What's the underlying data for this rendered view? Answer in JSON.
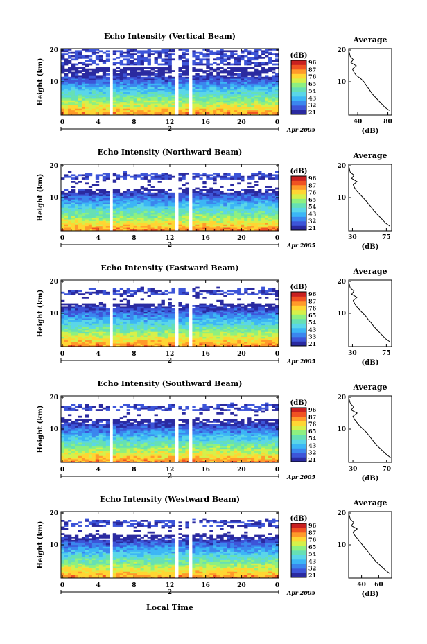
{
  "figure": {
    "xlabel": "Local Time",
    "date_label": "Apr 2005",
    "day_marker": "2"
  },
  "colorbar": {
    "unit_label": "(dB)",
    "colors": [
      "#2a2aa0",
      "#3d55d8",
      "#3b86ee",
      "#3cb6f5",
      "#5ad6e8",
      "#66e0b4",
      "#8ef080",
      "#d6f04a",
      "#ffd633",
      "#ff9a2a",
      "#f05222",
      "#c82020"
    ]
  },
  "chart_data": [
    {
      "type": "heatmap",
      "title": "Echo Intensity (Vertical Beam)",
      "xlabel": "Local Time",
      "ylabel": "Height (km)",
      "xlim": [
        0,
        24
      ],
      "ylim": [
        0,
        20
      ],
      "x_ticks": [
        "0",
        "4",
        "8",
        "12",
        "16",
        "20",
        "0"
      ],
      "y_ticks": [
        "10",
        "20"
      ],
      "colorbar_ticks": [
        "96",
        "87",
        "76",
        "65",
        "54",
        "43",
        "32",
        "21"
      ],
      "gaps_hours": [
        [
          5.5,
          5.7
        ],
        [
          12.6,
          12.9
        ],
        [
          14.1,
          14.4
        ]
      ],
      "white_band_km": [
        14.3,
        15.0
      ],
      "cloud_top_km": 19.5,
      "profile": {
        "title": "Average",
        "xlabel": "(dB)",
        "x_ticks": [
          "40",
          "80"
        ],
        "xlim": [
          28,
          85
        ],
        "y_ticks": [
          "10",
          "20"
        ],
        "height_km": [
          1,
          2,
          3,
          4,
          5,
          6,
          7,
          8,
          9,
          10,
          11,
          12,
          13,
          14,
          15,
          16,
          17,
          18,
          19,
          20
        ],
        "values_db": [
          82,
          76,
          72,
          68,
          64,
          60,
          57,
          54,
          51,
          48,
          44,
          38,
          35,
          33,
          38,
          31,
          34,
          30,
          29,
          28
        ]
      }
    },
    {
      "type": "heatmap",
      "title": "Echo Intensity (Northward Beam)",
      "xlabel": "Local Time",
      "ylabel": "Height (km)",
      "xlim": [
        0,
        24
      ],
      "ylim": [
        0,
        20
      ],
      "x_ticks": [
        "0",
        "4",
        "8",
        "12",
        "16",
        "20",
        "0"
      ],
      "y_ticks": [
        "10",
        "20"
      ],
      "colorbar_ticks": [
        "96",
        "87",
        "76",
        "65",
        "54",
        "43",
        "32",
        "21"
      ],
      "gaps_hours": [
        [
          5.5,
          5.7
        ],
        [
          12.6,
          12.9
        ],
        [
          14.1,
          14.4
        ]
      ],
      "white_band_km": [
        12.5,
        15.6
      ],
      "cloud_top_km": 17.0,
      "profile": {
        "title": "Average",
        "xlabel": "(dB)",
        "x_ticks": [
          "30",
          "75"
        ],
        "xlim": [
          25,
          82
        ],
        "y_ticks": [
          "10",
          "20"
        ],
        "height_km": [
          1,
          2,
          3,
          4,
          5,
          6,
          7,
          8,
          9,
          10,
          11,
          12,
          13,
          14,
          15,
          16,
          17,
          18,
          19,
          20
        ],
        "values_db": [
          80,
          74,
          70,
          66,
          62,
          58,
          55,
          51,
          48,
          44,
          40,
          36,
          33,
          31,
          36,
          29,
          32,
          27,
          26,
          25
        ]
      }
    },
    {
      "type": "heatmap",
      "title": "Echo Intensity (Eastward Beam)",
      "xlabel": "Local Time",
      "ylabel": "Height (km)",
      "xlim": [
        0,
        24
      ],
      "ylim": [
        0,
        20
      ],
      "x_ticks": [
        "0",
        "4",
        "8",
        "12",
        "16",
        "20",
        "0"
      ],
      "y_ticks": [
        "10",
        "20"
      ],
      "colorbar_ticks": [
        "96",
        "87",
        "76",
        "65",
        "54",
        "43",
        "33",
        "21"
      ],
      "gaps_hours": [
        [
          5.5,
          5.7
        ],
        [
          12.6,
          12.9
        ],
        [
          14.1,
          14.4
        ]
      ],
      "white_band_km": [
        13.0,
        15.4
      ],
      "cloud_top_km": 17.0,
      "profile": {
        "title": "Average",
        "xlabel": "(dB)",
        "x_ticks": [
          "30",
          "75"
        ],
        "xlim": [
          25,
          82
        ],
        "y_ticks": [
          "10",
          "20"
        ],
        "height_km": [
          1,
          2,
          3,
          4,
          5,
          6,
          7,
          8,
          9,
          10,
          11,
          12,
          13,
          14,
          15,
          16,
          17,
          18,
          19,
          20
        ],
        "values_db": [
          80,
          74,
          70,
          66,
          62,
          58,
          55,
          51,
          48,
          44,
          40,
          36,
          33,
          31,
          36,
          29,
          32,
          27,
          26,
          25
        ]
      }
    },
    {
      "type": "heatmap",
      "title": "Echo Intensity (Southward Beam)",
      "xlabel": "Local Time",
      "ylabel": "Height (km)",
      "xlim": [
        0,
        24
      ],
      "ylim": [
        0,
        20
      ],
      "x_ticks": [
        "0",
        "4",
        "8",
        "12",
        "16",
        "20",
        "0"
      ],
      "y_ticks": [
        "10",
        "20"
      ],
      "colorbar_ticks": [
        "96",
        "87",
        "76",
        "65",
        "54",
        "43",
        "32",
        "21"
      ],
      "gaps_hours": [
        [
          5.5,
          5.7
        ],
        [
          12.6,
          12.9
        ],
        [
          14.1,
          14.4
        ]
      ],
      "white_band_km": [
        13.0,
        15.4
      ],
      "cloud_top_km": 17.0,
      "profile": {
        "title": "Average",
        "xlabel": "(dB)",
        "x_ticks": [
          "30",
          "70"
        ],
        "xlim": [
          25,
          76
        ],
        "y_ticks": [
          "10",
          "20"
        ],
        "height_km": [
          1,
          2,
          3,
          4,
          5,
          6,
          7,
          8,
          9,
          10,
          11,
          12,
          13,
          14,
          15,
          16,
          17,
          18,
          19,
          20
        ],
        "values_db": [
          75,
          70,
          66,
          62,
          58,
          55,
          52,
          49,
          46,
          42,
          38,
          35,
          32,
          30,
          35,
          28,
          31,
          27,
          26,
          25
        ]
      }
    },
    {
      "type": "heatmap",
      "title": "Echo Intensity (Westward Beam)",
      "xlabel": "Local Time",
      "ylabel": "Height (km)",
      "xlim": [
        0,
        24
      ],
      "ylim": [
        0,
        20
      ],
      "x_ticks": [
        "0",
        "4",
        "8",
        "12",
        "16",
        "20",
        "0"
      ],
      "y_ticks": [
        "10",
        "20"
      ],
      "colorbar_ticks": [
        "96",
        "87",
        "76",
        "65",
        "54",
        "43",
        "32",
        "21"
      ],
      "gaps_hours": [
        [
          5.5,
          5.7
        ],
        [
          12.6,
          12.9
        ],
        [
          14.1,
          14.4
        ]
      ],
      "white_band_km": [
        13.0,
        15.4
      ],
      "cloud_top_km": 17.0,
      "profile": {
        "title": "Average",
        "xlabel": "(dB)",
        "x_ticks": [
          "40",
          "60"
        ],
        "xlim": [
          25,
          75
        ],
        "y_ticks": [
          "10",
          "20"
        ],
        "height_km": [
          1,
          2,
          3,
          4,
          5,
          6,
          7,
          8,
          9,
          10,
          11,
          12,
          13,
          14,
          15,
          16,
          17,
          18,
          19,
          20
        ],
        "values_db": [
          73,
          68,
          64,
          60,
          56,
          53,
          50,
          47,
          44,
          41,
          38,
          35,
          32,
          30,
          35,
          28,
          31,
          27,
          26,
          25
        ]
      }
    }
  ]
}
